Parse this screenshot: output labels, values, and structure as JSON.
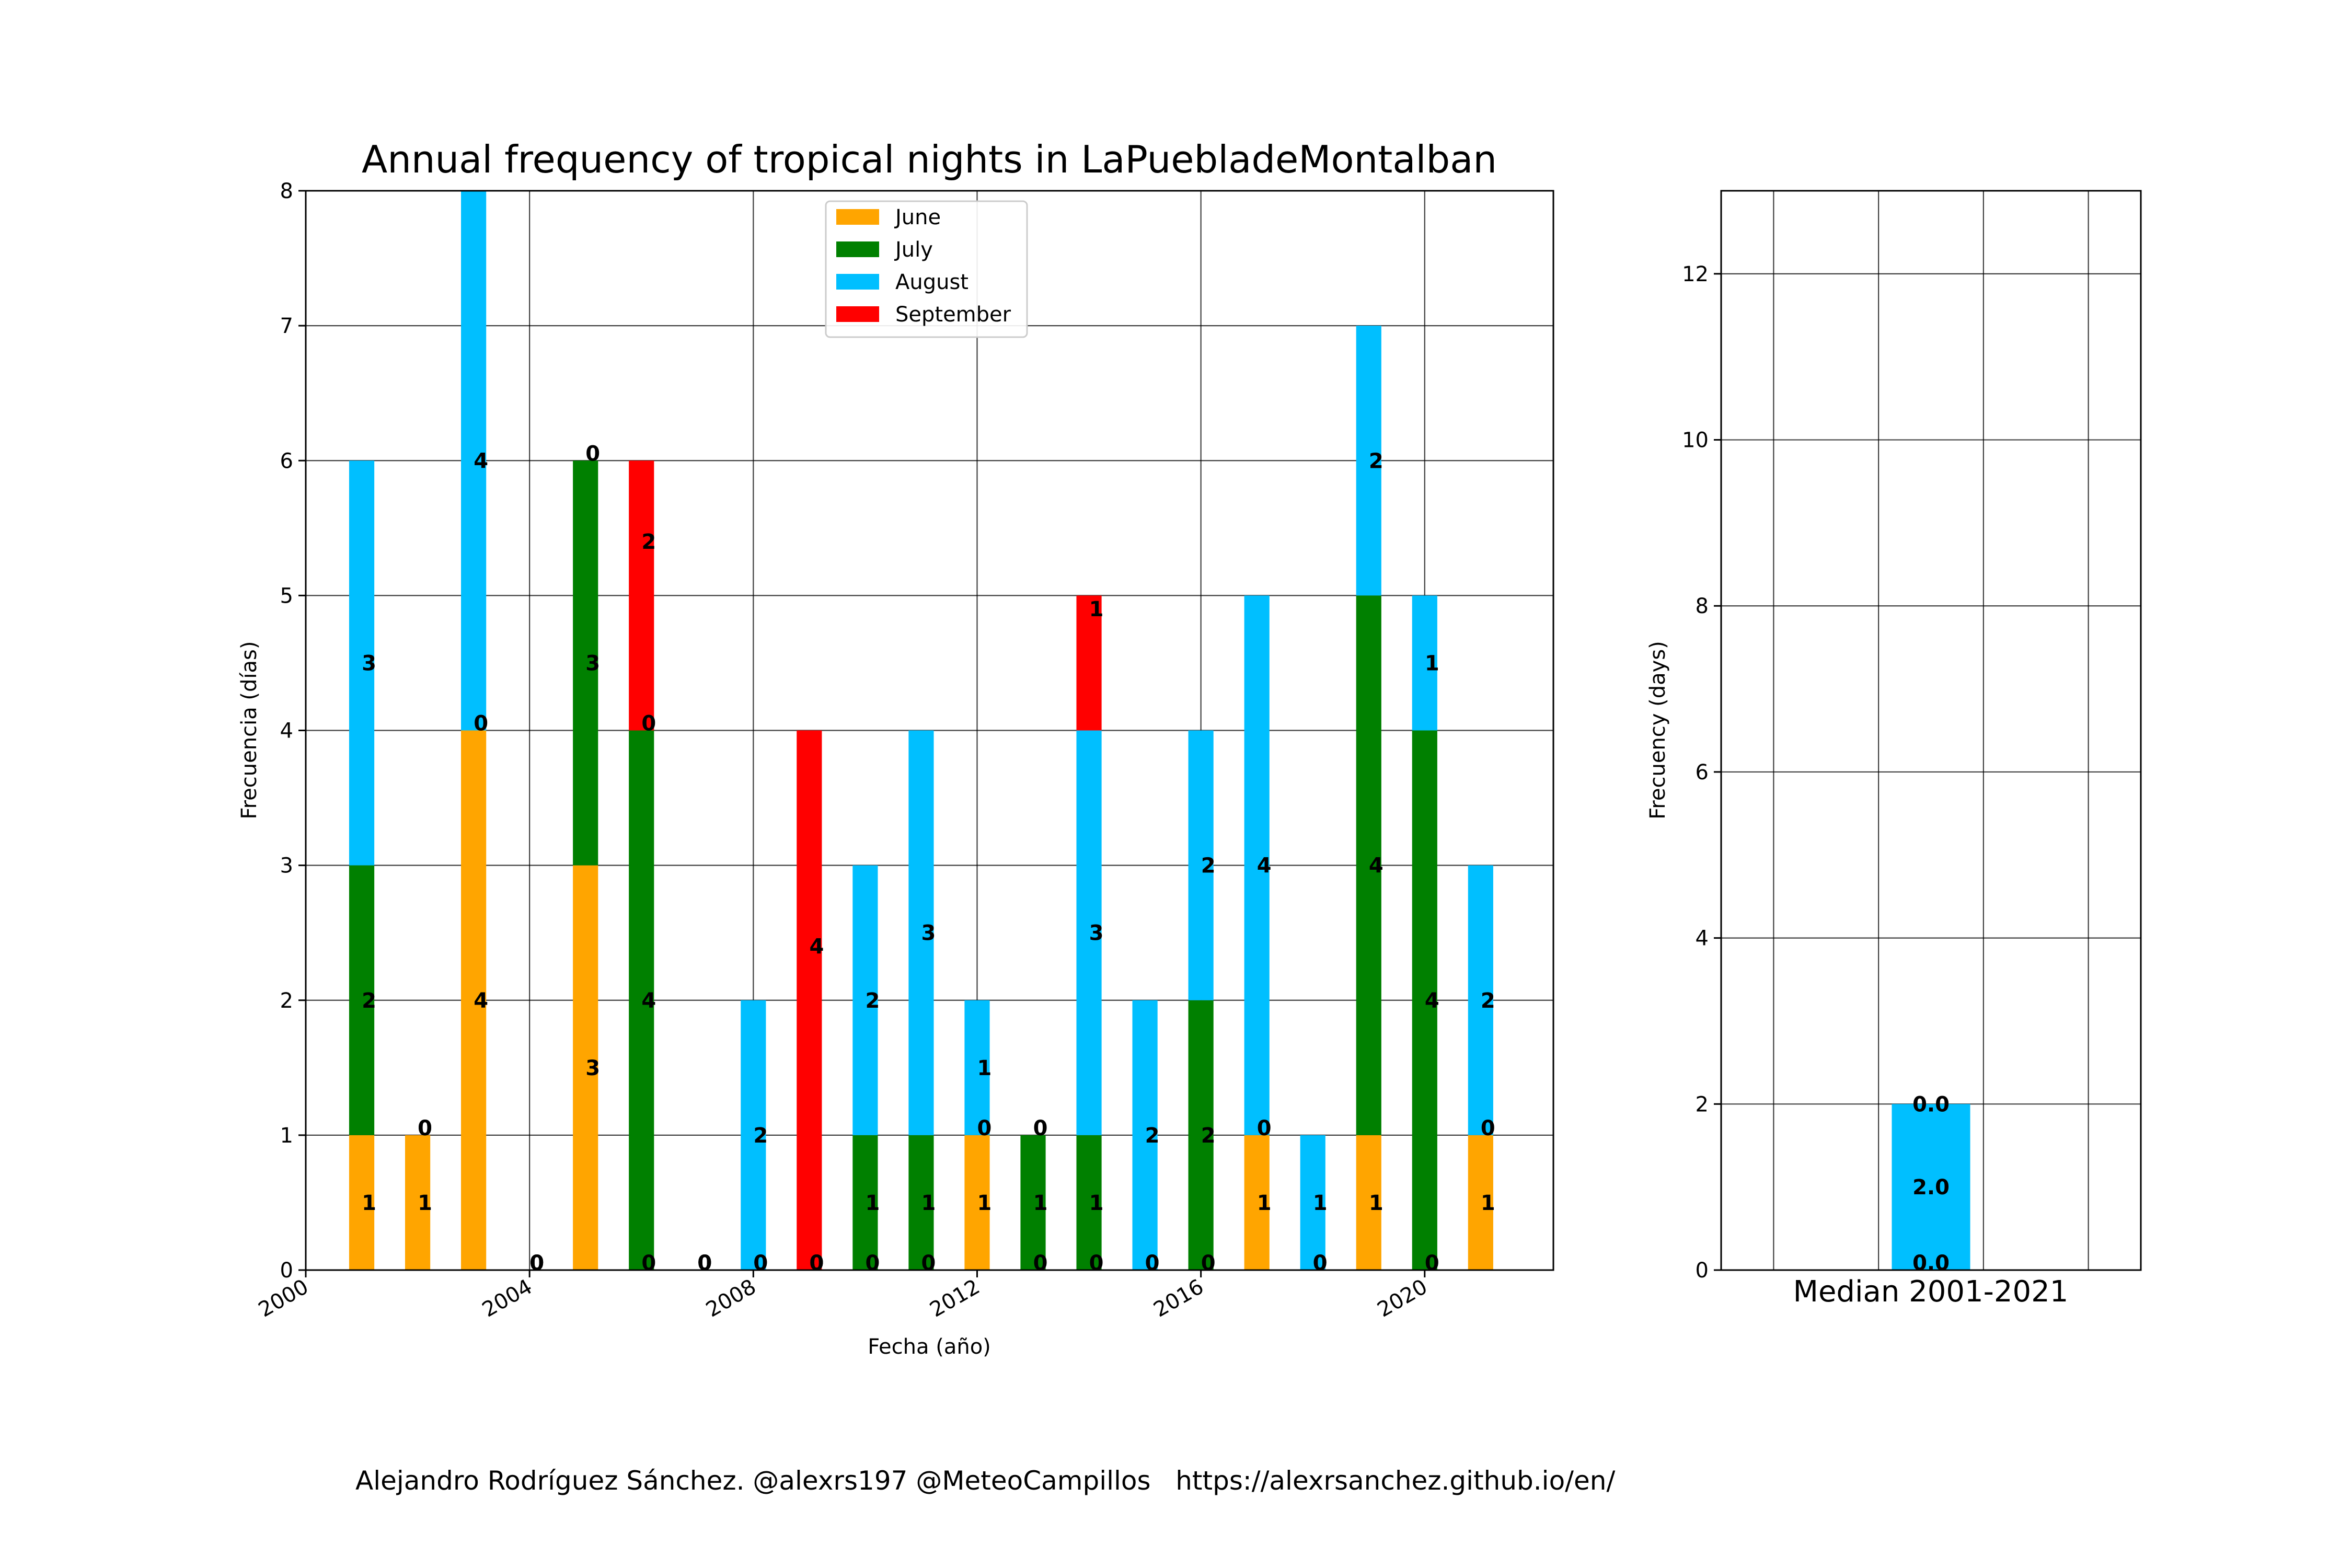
{
  "chart_data": [
    {
      "type": "bar",
      "stacked": true,
      "title": "Annual frequency of tropical nights in LaPuebladeMontalban",
      "xlabel": "Fecha (año)",
      "ylabel": "Frecuencia (días)",
      "xlim": [
        2000,
        2022.3
      ],
      "ylim": [
        0,
        8
      ],
      "xticks": [
        "2000",
        "2004",
        "2008",
        "2012",
        "2016",
        "2020"
      ],
      "yticks": [
        "0",
        "1",
        "2",
        "3",
        "4",
        "5",
        "6",
        "7",
        "8"
      ],
      "grid": true,
      "legend_position": "upper center",
      "years": [
        2001,
        2002,
        2003,
        2004,
        2005,
        2006,
        2007,
        2008,
        2009,
        2010,
        2011,
        2012,
        2013,
        2014,
        2015,
        2016,
        2017,
        2018,
        2019,
        2020,
        2021
      ],
      "series": [
        {
          "name": "June",
          "color": "#ffa500",
          "values": [
            1,
            1,
            4,
            0,
            3,
            0,
            0,
            0,
            0,
            0,
            0,
            1,
            0,
            0,
            0,
            0,
            1,
            0,
            1,
            0,
            1
          ]
        },
        {
          "name": "July",
          "color": "#008000",
          "values": [
            2,
            0,
            0,
            0,
            3,
            4,
            0,
            0,
            0,
            1,
            1,
            0,
            1,
            1,
            0,
            2,
            0,
            0,
            4,
            4,
            0
          ]
        },
        {
          "name": "August",
          "color": "#00bfff",
          "values": [
            3,
            0,
            4,
            0,
            0,
            0,
            0,
            2,
            0,
            2,
            3,
            1,
            0,
            3,
            2,
            2,
            4,
            1,
            2,
            1,
            2
          ]
        },
        {
          "name": "September",
          "color": "#ff0000",
          "values": [
            0,
            0,
            0,
            0,
            0,
            2,
            0,
            0,
            4,
            0,
            0,
            0,
            0,
            1,
            0,
            0,
            0,
            0,
            0,
            0,
            0
          ]
        }
      ]
    },
    {
      "type": "bar",
      "stacked": true,
      "category": "Median 2001-2021",
      "ylabel": "Frecuency (days)",
      "ylim": [
        0,
        13
      ],
      "yticks": [
        "0",
        "2",
        "4",
        "6",
        "8",
        "10",
        "12"
      ],
      "grid": true,
      "series": [
        {
          "name": "June",
          "color": "#ffa500",
          "value": 0.0
        },
        {
          "name": "July",
          "color": "#008000",
          "value": 0.0
        },
        {
          "name": "August",
          "color": "#00bfff",
          "value": 2.0
        },
        {
          "name": "September",
          "color": "#ff0000",
          "value": 0.0
        }
      ]
    }
  ],
  "footer": {
    "credit": "Alejandro Rodríguez Sánchez. @alexrs197 @MeteoCampillos   https://alexrsanchez.github.io/en/"
  }
}
